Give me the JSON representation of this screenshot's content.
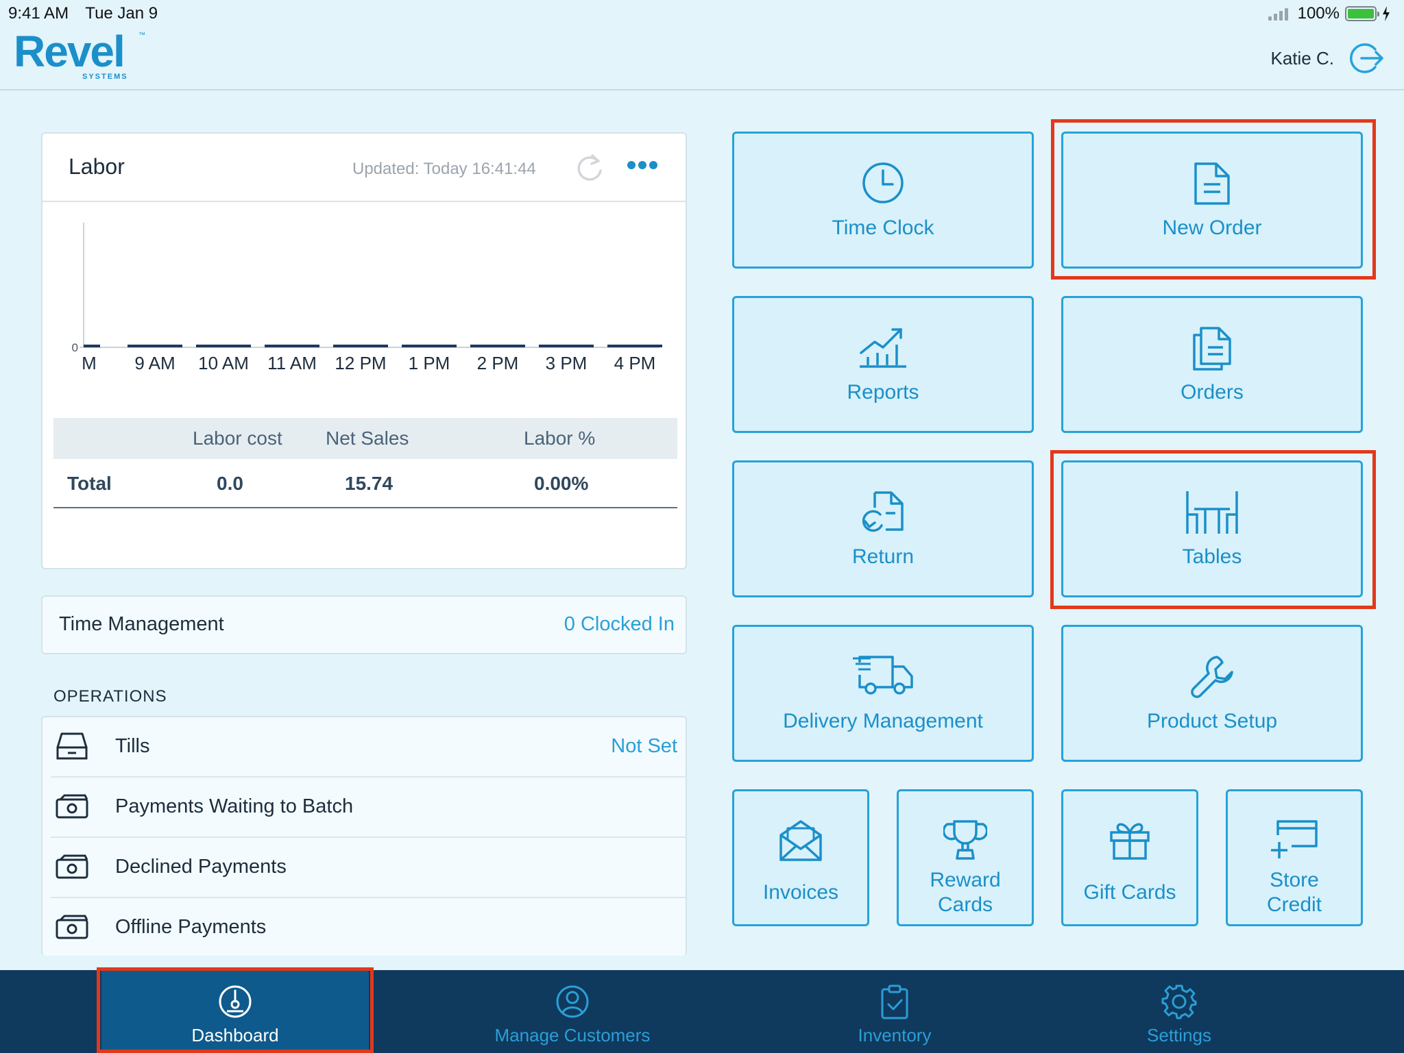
{
  "status_bar": {
    "time": "9:41 AM",
    "date": "Tue Jan 9",
    "battery": "100%"
  },
  "header": {
    "logo": {
      "word": "Revel",
      "sub": "SYSTEMS",
      "tm": "™"
    },
    "user_name": "Katie C.",
    "logout_icon": "logout-arrow-icon"
  },
  "labor": {
    "title": "Labor",
    "updated": "Updated: Today 16:41:44",
    "table": {
      "headers": [
        "Labor cost",
        "Net Sales",
        "Labor %"
      ],
      "row_label": "Total",
      "row_values": [
        "0.0",
        "15.74",
        "0.00%"
      ]
    }
  },
  "chart_data": {
    "type": "bar",
    "categories": [
      "M",
      "9 AM",
      "10 AM",
      "11 AM",
      "12 PM",
      "1 PM",
      "2 PM",
      "3 PM",
      "4 PM"
    ],
    "values": [
      0,
      0,
      0,
      0,
      0,
      0,
      0,
      0,
      0
    ],
    "ytick": "0",
    "title": "",
    "xlabel": "",
    "ylabel": ""
  },
  "time_management": {
    "label": "Time Management",
    "value": "0 Clocked In"
  },
  "operations": {
    "label": "OPERATIONS",
    "rows": [
      {
        "label": "Tills",
        "value": "Not Set",
        "icon": "drawer-icon"
      },
      {
        "label": "Payments Waiting to Batch",
        "value": "",
        "icon": "cash-icon"
      },
      {
        "label": "Declined Payments",
        "value": "",
        "icon": "cash-icon"
      },
      {
        "label": "Offline Payments",
        "value": "",
        "icon": "cash-icon"
      }
    ]
  },
  "tiles": {
    "time_clock": "Time Clock",
    "new_order": "New Order",
    "reports": "Reports",
    "orders": "Orders",
    "return": "Return",
    "tables": "Tables",
    "delivery": "Delivery Management",
    "product_setup": "Product Setup",
    "invoices": "Invoices",
    "reward_1": "Reward",
    "reward_2": "Cards",
    "gift_cards": "Gift Cards",
    "store_1": "Store",
    "store_2": "Credit"
  },
  "nav": {
    "dashboard": "Dashboard",
    "customers": "Manage Customers",
    "inventory": "Inventory",
    "settings": "Settings"
  },
  "colors": {
    "accent": "#27a2d9",
    "highlight": "#e2381b",
    "nav_bg": "#10395e",
    "nav_active": "#0e5a8c",
    "tile_bg": "#d8f1fa"
  }
}
